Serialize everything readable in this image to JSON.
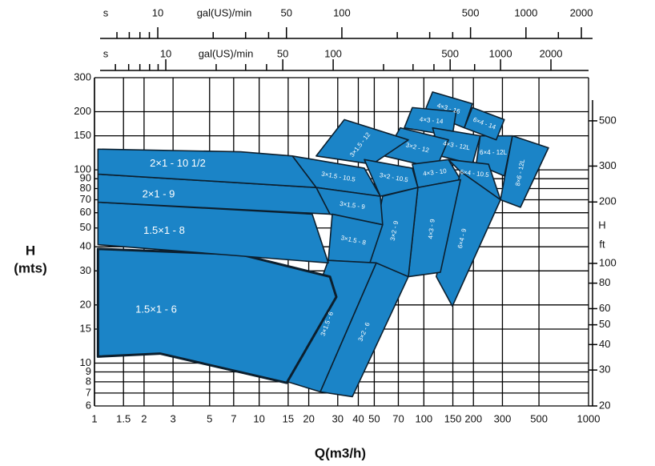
{
  "chart_data": {
    "type": "region",
    "x_label": "Q(m3/h)",
    "y_label": "H",
    "y_label_unit": "(mts)",
    "y2_label": "H",
    "y2_label_unit": "ft",
    "xscale": "log",
    "yscale": "log",
    "grid": true,
    "color": "#1b84c7",
    "xlim": [
      1,
      1000
    ],
    "xticks": [
      1,
      1.5,
      2,
      3,
      5,
      7,
      10,
      15,
      20,
      30,
      40,
      50,
      70,
      100,
      150,
      200,
      300,
      500,
      1000
    ],
    "ylim": [
      6,
      300
    ],
    "yticks": [
      6,
      7,
      8,
      9,
      10,
      15,
      20,
      30,
      40,
      50,
      60,
      70,
      80,
      90,
      100,
      150,
      200,
      300
    ],
    "y2lim": [
      20,
      814
    ],
    "y2ticks": [
      20,
      30,
      40,
      50,
      60,
      80,
      100,
      200,
      300,
      500
    ],
    "top_axes": [
      {
        "prefix": "s",
        "label": "gal(US)/min",
        "xlim": [
          4.86,
          2300
        ],
        "ticks": [
          10,
          50,
          100,
          500,
          1000,
          2000
        ],
        "minor_ticks": [
          6,
          7,
          8,
          9,
          20,
          30,
          40,
          200,
          300,
          400,
          1500
        ]
      },
      {
        "prefix": "s",
        "label": "gal(US)/min",
        "xlim": [
          4.05,
          3355
        ],
        "ticks": [
          10,
          50,
          100,
          500,
          1000,
          2000
        ],
        "minor_ticks": [
          5,
          6,
          7,
          8,
          9,
          20,
          30,
          40,
          200,
          300,
          400,
          700
        ]
      }
    ],
    "regions": [
      {
        "name": "2×1 - 10 1/2",
        "q": [
          1.05,
          7.7,
          15.9,
          22.2,
          1.05
        ],
        "h": [
          128,
          124,
          118,
          81,
          95
        ]
      },
      {
        "name": "2×1 - 9",
        "q": [
          1.05,
          22.2,
          26.9,
          1.05
        ],
        "h": [
          95,
          81,
          59,
          68
        ]
      },
      {
        "name": "1.5×1 - 8",
        "q": [
          1.05,
          21,
          26.3,
          1.05
        ],
        "h": [
          68,
          59,
          33,
          41
        ]
      },
      {
        "name": "1.5×1 - 6",
        "q": [
          1.05,
          7.7,
          26.9,
          29.4,
          14.7,
          2.5,
          1.05
        ],
        "h": [
          39,
          36.5,
          28,
          22,
          7.9,
          11.2,
          10.8
        ]
      },
      {
        "name": "3×1.5 - 6",
        "q": [
          26.3,
          51.4,
          23.5,
          14.2
        ],
        "h": [
          34,
          33,
          7.1,
          8.1
        ]
      },
      {
        "name": "3×2 - 6",
        "q": [
          51.4,
          80.5,
          36.8,
          23.5
        ],
        "h": [
          33,
          28,
          6.7,
          7.1
        ]
      },
      {
        "name": "3×1.5 - 8",
        "q": [
          27.8,
          56.2,
          47,
          26.3
        ],
        "h": [
          59,
          52,
          33,
          34
        ]
      },
      {
        "name": "3×1.5 - 9",
        "q": [
          22.2,
          54.4,
          56.2,
          26.9
        ],
        "h": [
          81,
          73,
          52,
          59
        ]
      },
      {
        "name": "3×2 - 9",
        "q": [
          56.2,
          92,
          80.5,
          47
        ],
        "h": [
          73,
          81,
          28,
          33
        ]
      },
      {
        "name": "4×3 - 9",
        "q": [
          92,
          167,
          126,
          80.5
        ],
        "h": [
          81,
          89,
          29.5,
          28
        ]
      },
      {
        "name": "6×4 - 9",
        "q": [
          167,
          292,
          149,
          119
        ],
        "h": [
          98,
          70,
          19.7,
          28
        ]
      },
      {
        "name": "3×1.5 - 10.5",
        "q": [
          15.9,
          43.5,
          54.4,
          22.2
        ],
        "h": [
          118,
          102,
          73,
          81
        ]
      },
      {
        "name": "3×2 - 10.5",
        "q": [
          43.5,
          85.1,
          92,
          54.4
        ],
        "h": [
          113,
          102,
          81,
          73
        ]
      },
      {
        "name": "4×3 - 10",
        "q": [
          85.1,
          141,
          167,
          92
        ],
        "h": [
          107,
          113,
          89,
          81
        ]
      },
      {
        "name": "6×4 - 10.5",
        "q": [
          141,
          247,
          292,
          167
        ],
        "h": [
          113,
          107,
          70,
          98
        ]
      },
      {
        "name": "3×1.5 - 12",
        "q": [
          22.2,
          32.9,
          80.5,
          48.6
        ],
        "h": [
          118,
          182,
          143,
          107
        ]
      },
      {
        "name": "3×2 - 12",
        "q": [
          71.9,
          141,
          119,
          57.5
        ],
        "h": [
          165,
          143,
          102,
          118
        ]
      },
      {
        "name": "4×3 - 12L",
        "q": [
          113,
          220,
          197,
          126
        ],
        "h": [
          165,
          150,
          107,
          118
        ]
      },
      {
        "name": "4×3 - 14",
        "q": [
          85.1,
          157,
          149,
          76.1
        ],
        "h": [
          210,
          200,
          150,
          165
        ]
      },
      {
        "name": "4×3 - 16",
        "q": [
          113,
          197,
          176,
          101
        ],
        "h": [
          253,
          220,
          165,
          200
        ]
      },
      {
        "name": "6×4 - 14",
        "q": [
          197,
          308,
          275,
          176
        ],
        "h": [
          210,
          182,
          143,
          165
        ]
      },
      {
        "name": "6×4 - 12L",
        "q": [
          220,
          345,
          308,
          208
        ],
        "h": [
          150,
          150,
          93,
          107
        ]
      },
      {
        "name": "8×6 - 12L",
        "q": [
          345,
          571,
          386,
          292
        ],
        "h": [
          150,
          130,
          64,
          70
        ]
      }
    ]
  }
}
